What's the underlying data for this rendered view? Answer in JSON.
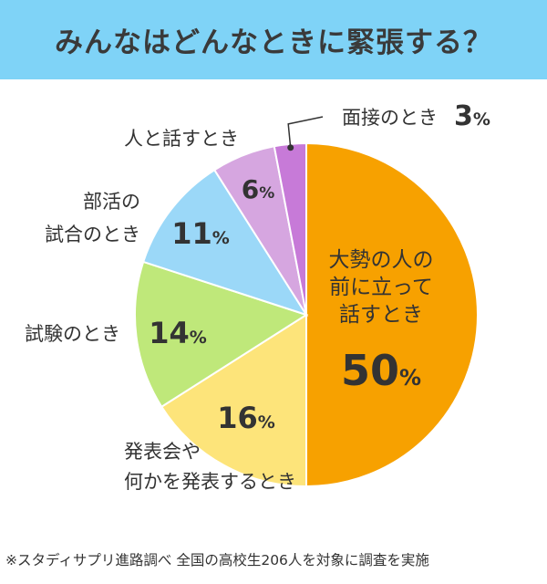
{
  "header": {
    "title": "みんなはどんなときに緊張する？"
  },
  "chart_data": {
    "type": "pie",
    "start_angle_deg": 0,
    "direction": "clockwise",
    "slices": [
      {
        "label_lines": [
          "大勢の人の",
          "前に立って",
          "話すとき"
        ],
        "value": 50,
        "value_text": "50",
        "color": "#f7a100"
      },
      {
        "label_lines": [
          "発表会や",
          "何かを発表するとき"
        ],
        "value": 16,
        "value_text": "16",
        "color": "#fde47a"
      },
      {
        "label_lines": [
          "試験のとき"
        ],
        "value": 14,
        "value_text": "14",
        "color": "#bfe87a"
      },
      {
        "label_lines": [
          "部活の",
          "試合のとき"
        ],
        "value": 11,
        "value_text": "11",
        "color": "#9bd8f8"
      },
      {
        "label_lines": [
          "人と話すとき"
        ],
        "value": 6,
        "value_text": "6",
        "color": "#d6a6e0"
      },
      {
        "label_lines": [
          "面接のとき"
        ],
        "value": 3,
        "value_text": "3",
        "color": "#c77ad8"
      }
    ],
    "percent_sign": "%"
  },
  "footnote": "※スタディサプリ進路調べ 全国の高校生206人を対象に調査を実施"
}
